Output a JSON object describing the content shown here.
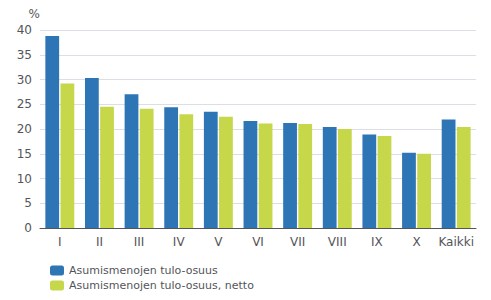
{
  "chart_data": {
    "type": "bar",
    "categories": [
      "I",
      "II",
      "III",
      "IV",
      "V",
      "VI",
      "VII",
      "VIII",
      "IX",
      "X",
      "Kaikki"
    ],
    "series": [
      {
        "name": "Asumismenojen tulo-osuus",
        "color": "#2E75B6",
        "values": [
          38.8,
          30.3,
          27.0,
          24.4,
          23.5,
          21.6,
          21.2,
          20.4,
          18.9,
          15.2,
          21.9
        ]
      },
      {
        "name": "Asumismenojen tulo-osuus, netto",
        "color": "#C6D84A",
        "values": [
          29.2,
          24.5,
          24.1,
          23.0,
          22.5,
          21.1,
          21.0,
          20.0,
          18.6,
          15.0,
          20.4
        ]
      }
    ],
    "ylabel": "%",
    "ylim": [
      0,
      40
    ],
    "yticks": [
      0,
      5,
      10,
      15,
      20,
      25,
      30,
      35,
      40
    ],
    "grid": true,
    "legend": "bottom"
  }
}
